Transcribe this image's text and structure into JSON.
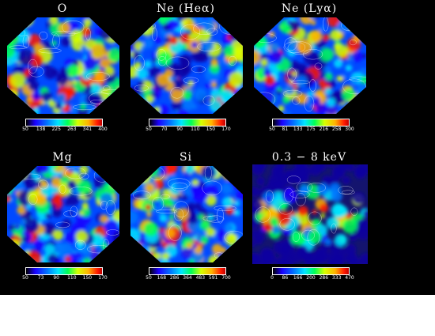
{
  "panels": [
    {
      "title": "O",
      "ticks": [
        "50",
        "138",
        "225",
        "263",
        "341",
        "400"
      ],
      "style": "sphere",
      "seed": 3
    },
    {
      "title": "Ne (Heα)",
      "ticks": [
        "50",
        "70",
        "90",
        "110",
        "150",
        "170"
      ],
      "style": "sphere",
      "seed": 7
    },
    {
      "title": "Ne (Lyα)",
      "ticks": [
        "50",
        "81",
        "133",
        "175",
        "216",
        "258",
        "300"
      ],
      "style": "sphere",
      "seed": 11
    },
    {
      "title": "Mg",
      "ticks": [
        "50",
        "73",
        "90",
        "110",
        "150",
        "170"
      ],
      "style": "sphere",
      "seed": 17
    },
    {
      "title": "Si",
      "ticks": [
        "50",
        "168",
        "286",
        "364",
        "483",
        "591",
        "700"
      ],
      "style": "sphere",
      "seed": 23
    },
    {
      "title": "0.3 − 8 keV",
      "ticks": [
        "0",
        "86",
        "166",
        "200",
        "286",
        "333",
        "470"
      ],
      "style": "band",
      "seed": 29
    }
  ]
}
